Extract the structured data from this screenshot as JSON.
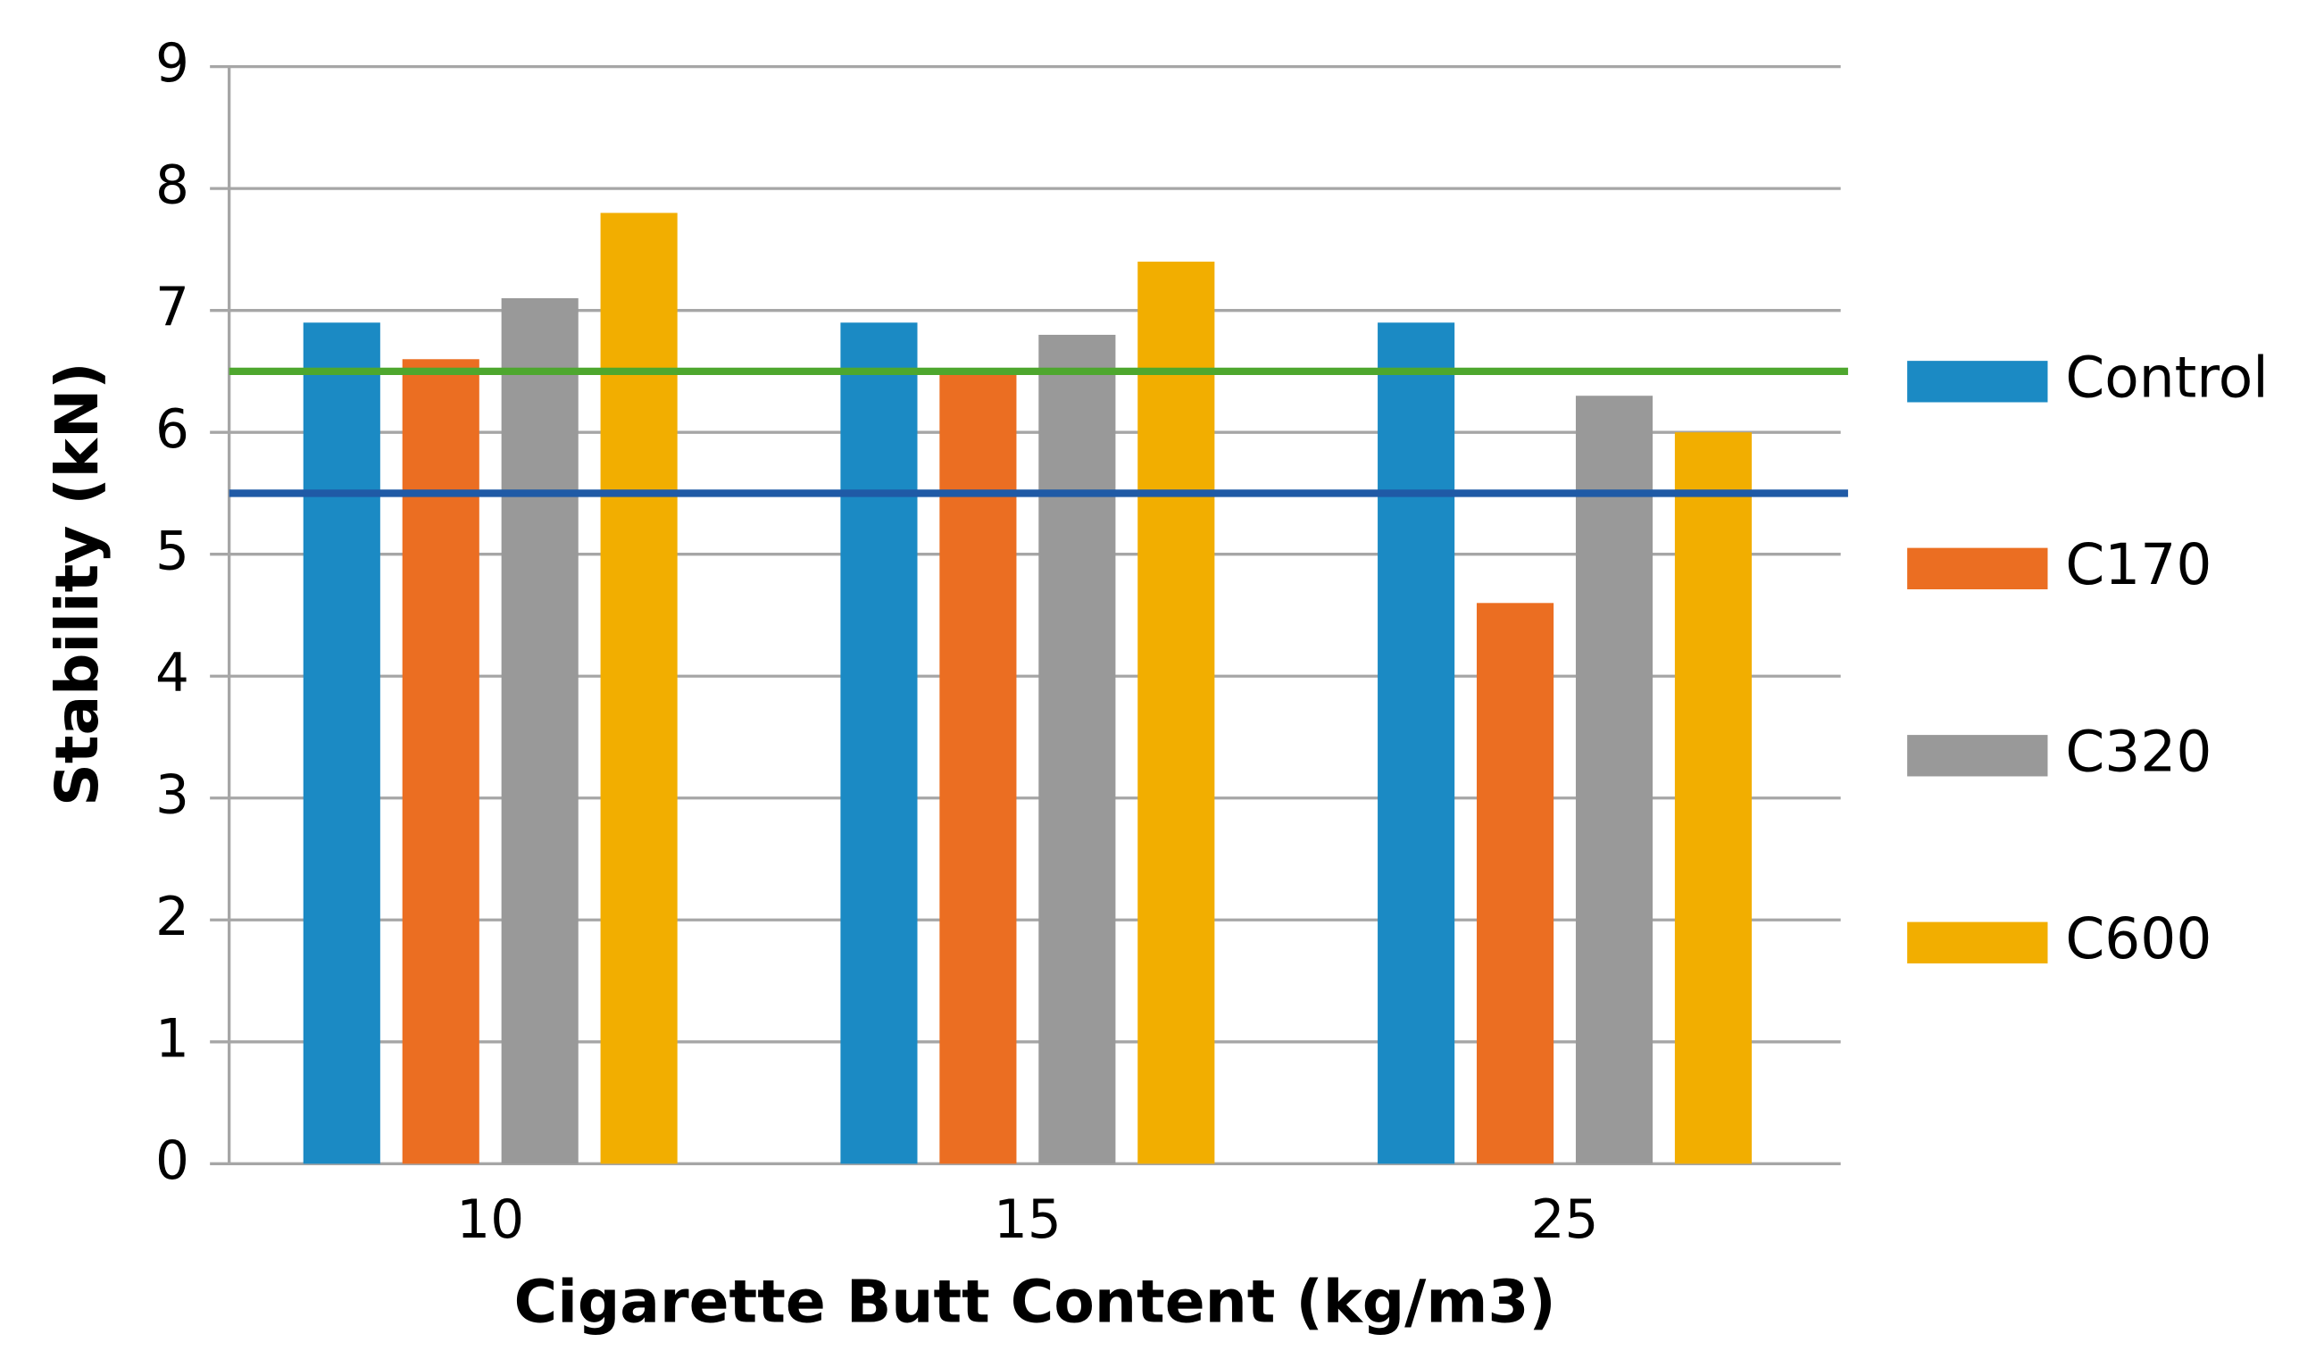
{
  "chart_data": {
    "type": "bar",
    "x_label": "Cigarette Butt Content (kg/m3)",
    "y_label": "Stability (kN)",
    "categories": [
      "10",
      "15",
      "25"
    ],
    "series": [
      {
        "name": "Control",
        "color": "#1b8ac4",
        "values": [
          6.9,
          6.9,
          6.9
        ]
      },
      {
        "name": "C170",
        "color": "#eb6e22",
        "values": [
          6.6,
          6.5,
          4.6
        ]
      },
      {
        "name": "C320",
        "color": "#999999",
        "values": [
          7.1,
          6.8,
          6.3
        ]
      },
      {
        "name": "C600",
        "color": "#f2ae00",
        "values": [
          7.8,
          7.4,
          6.0
        ]
      }
    ],
    "reference_lines": [
      {
        "value": 6.5,
        "color": "#4ea72e"
      },
      {
        "value": 5.5,
        "color": "#1f5aa6"
      }
    ],
    "ylim": [
      0,
      9
    ],
    "yticks": [
      0,
      1,
      2,
      3,
      4,
      5,
      6,
      7,
      8,
      9
    ],
    "grid": true,
    "legend": "right"
  }
}
